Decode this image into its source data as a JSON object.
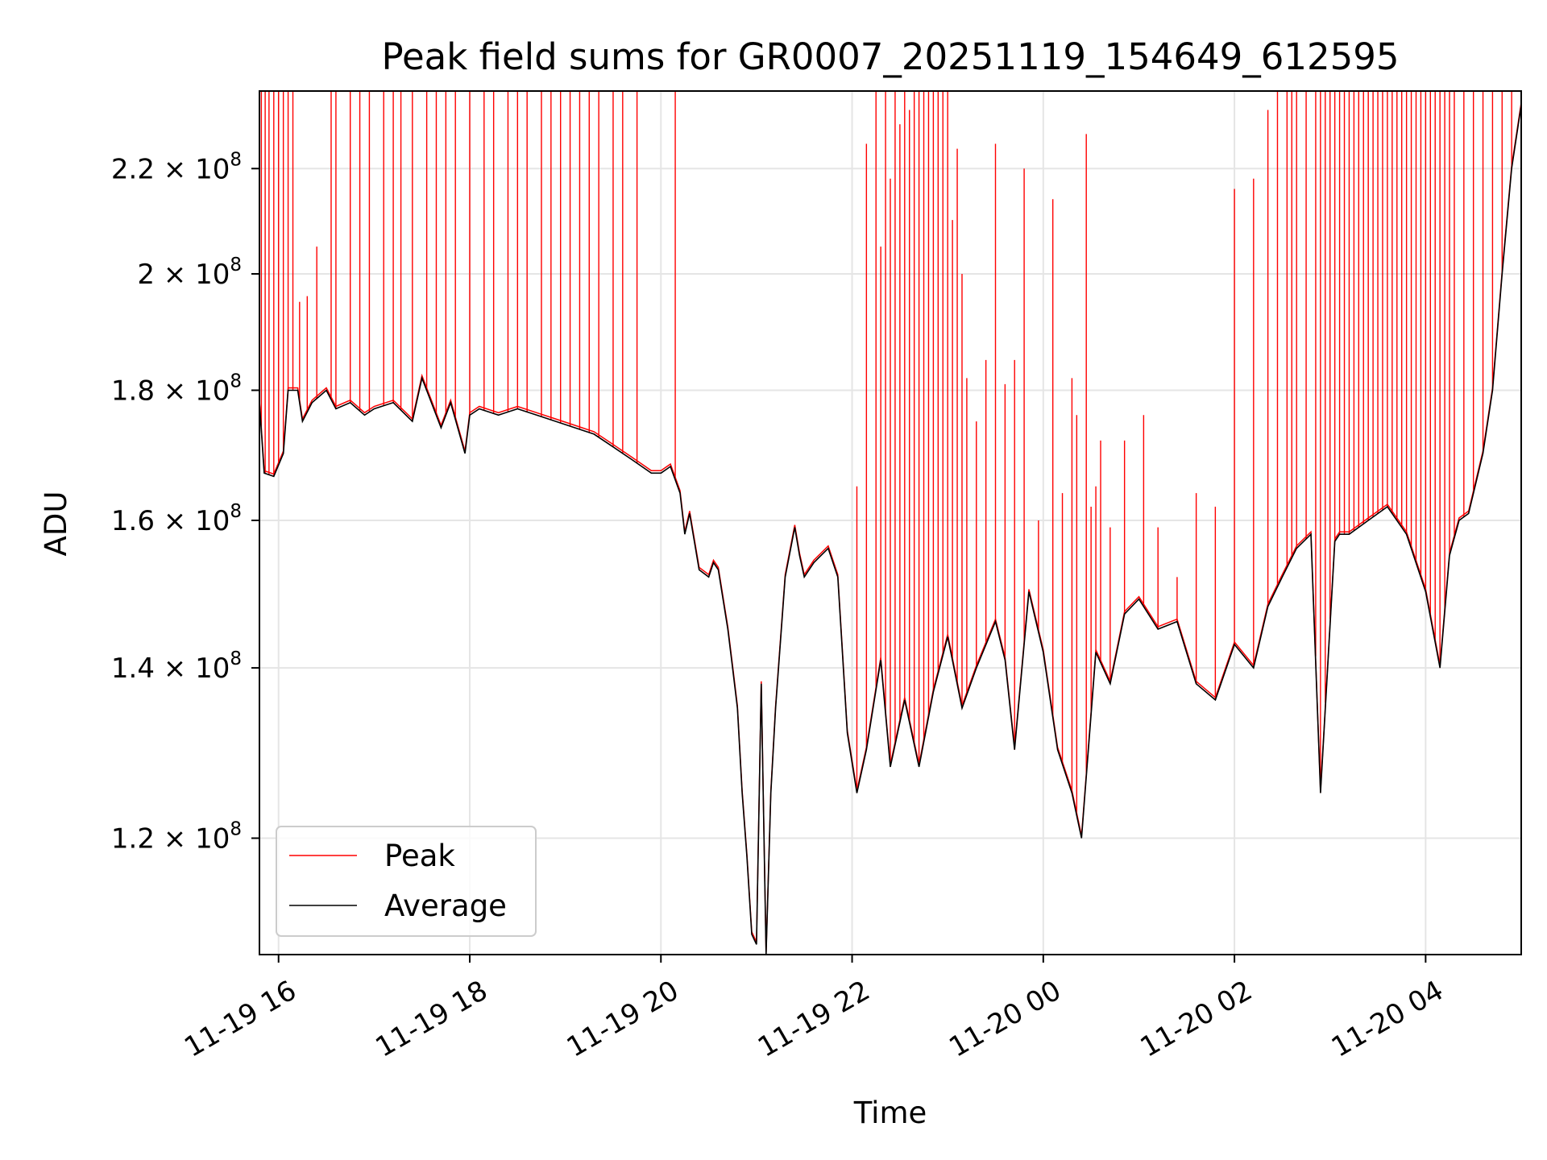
{
  "chart_data": {
    "type": "line",
    "title": "Peak field sums for GR0007_20251119_154649_612595",
    "xlabel": "Time",
    "ylabel": "ADU",
    "yscale": "log",
    "grid": true,
    "legend_position": "lower-left",
    "xlim_hours": [
      15.8,
      29.0
    ],
    "ylim": [
      108000000,
      236000000
    ],
    "x_ticks": [
      {
        "hour": 16,
        "label": "11-19 16"
      },
      {
        "hour": 18,
        "label": "11-19 18"
      },
      {
        "hour": 20,
        "label": "11-19 20"
      },
      {
        "hour": 22,
        "label": "11-19 22"
      },
      {
        "hour": 24,
        "label": "11-20 00"
      },
      {
        "hour": 26,
        "label": "11-20 02"
      },
      {
        "hour": 28,
        "label": "11-20 04"
      }
    ],
    "y_ticks": [
      {
        "value": 120000000,
        "mantissa": "1.2",
        "exponent": "8"
      },
      {
        "value": 140000000,
        "mantissa": "1.4",
        "exponent": "8"
      },
      {
        "value": 160000000,
        "mantissa": "1.6",
        "exponent": "8"
      },
      {
        "value": 180000000,
        "mantissa": "1.8",
        "exponent": "8"
      },
      {
        "value": 200000000,
        "mantissa": "2",
        "exponent": "8"
      },
      {
        "value": 220000000,
        "mantissa": "2.2",
        "exponent": "8"
      }
    ],
    "series": [
      {
        "name": "Average",
        "color": "#000000",
        "x_hours": [
          15.8,
          15.85,
          15.95,
          16.05,
          16.1,
          16.2,
          16.25,
          16.35,
          16.5,
          16.6,
          16.75,
          16.9,
          17.0,
          17.2,
          17.4,
          17.5,
          17.7,
          17.8,
          17.95,
          18.0,
          18.1,
          18.3,
          18.5,
          18.7,
          18.9,
          19.1,
          19.3,
          19.5,
          19.7,
          19.9,
          20.0,
          20.1,
          20.2,
          20.25,
          20.3,
          20.4,
          20.5,
          20.55,
          20.6,
          20.7,
          20.75,
          20.8,
          20.85,
          20.9,
          20.95,
          21.0,
          21.05,
          21.1,
          21.15,
          21.2,
          21.3,
          21.4,
          21.45,
          21.5,
          21.6,
          21.75,
          21.85,
          21.95,
          22.05,
          22.15,
          22.3,
          22.4,
          22.55,
          22.7,
          22.85,
          23.0,
          23.15,
          23.3,
          23.5,
          23.6,
          23.7,
          23.85,
          24.0,
          24.15,
          24.3,
          24.4,
          24.55,
          24.7,
          24.85,
          25.0,
          25.2,
          25.4,
          25.6,
          25.8,
          26.0,
          26.2,
          26.35,
          26.5,
          26.65,
          26.8,
          26.9,
          27.05,
          27.1,
          27.2,
          27.4,
          27.6,
          27.8,
          28.0,
          28.15,
          28.25,
          28.35,
          28.45,
          28.6,
          28.7,
          28.8,
          28.9,
          29.0
        ],
        "values": [
          178000000,
          167000000,
          166500000,
          170000000,
          180000000,
          180000000,
          175000000,
          178000000,
          180000000,
          177000000,
          178000000,
          176000000,
          177000000,
          178000000,
          175000000,
          182000000,
          174000000,
          178000000,
          170000000,
          176000000,
          177000000,
          176000000,
          177000000,
          176000000,
          175000000,
          174000000,
          173000000,
          171000000,
          169000000,
          167000000,
          167000000,
          168000000,
          164000000,
          158000000,
          161000000,
          153000000,
          152000000,
          154000000,
          153000000,
          145000000,
          140000000,
          135000000,
          125000000,
          118000000,
          110000000,
          109000000,
          138000000,
          108000000,
          125000000,
          135000000,
          152000000,
          159000000,
          155000000,
          152000000,
          154000000,
          156000000,
          152000000,
          132000000,
          125000000,
          130000000,
          141000000,
          128000000,
          136000000,
          128000000,
          137000000,
          144000000,
          135000000,
          140000000,
          146000000,
          141000000,
          130000000,
          150000000,
          142000000,
          130000000,
          125000000,
          120000000,
          142000000,
          138000000,
          147000000,
          149000000,
          145000000,
          146000000,
          138000000,
          136000000,
          143000000,
          140000000,
          148000000,
          152000000,
          156000000,
          158000000,
          125000000,
          157000000,
          158000000,
          158000000,
          160000000,
          162000000,
          158000000,
          150000000,
          140000000,
          155000000,
          160000000,
          161000000,
          170000000,
          180000000,
          200000000,
          220000000,
          233000000
        ]
      },
      {
        "name": "Peak",
        "color": "#ff0000",
        "spike_x_hours": [
          15.82,
          15.86,
          15.9,
          15.95,
          16.0,
          16.05,
          16.1,
          16.15,
          16.22,
          16.3,
          16.4,
          16.55,
          16.6,
          16.75,
          16.85,
          16.95,
          17.1,
          17.2,
          17.28,
          17.4,
          17.55,
          17.65,
          17.75,
          17.85,
          18.0,
          18.15,
          18.25,
          18.4,
          18.5,
          18.6,
          18.75,
          18.85,
          18.95,
          19.05,
          19.15,
          19.25,
          19.35,
          19.5,
          19.6,
          19.75,
          20.15,
          22.05,
          22.15,
          22.25,
          22.3,
          22.35,
          22.4,
          22.45,
          22.5,
          22.55,
          22.6,
          22.65,
          22.7,
          22.75,
          22.8,
          22.85,
          22.9,
          22.95,
          23.0,
          23.05,
          23.1,
          23.15,
          23.2,
          23.3,
          23.4,
          23.5,
          23.6,
          23.7,
          23.8,
          23.95,
          24.1,
          24.2,
          24.3,
          24.35,
          24.45,
          24.5,
          24.55,
          24.6,
          24.7,
          24.85,
          25.05,
          25.2,
          25.4,
          25.6,
          25.8,
          26.0,
          26.2,
          26.35,
          26.45,
          26.55,
          26.6,
          26.65,
          26.75,
          26.85,
          26.9,
          26.95,
          27.0,
          27.05,
          27.1,
          27.15,
          27.2,
          27.25,
          27.3,
          27.35,
          27.4,
          27.45,
          27.5,
          27.55,
          27.6,
          27.65,
          27.7,
          27.75,
          27.8,
          27.85,
          27.9,
          27.95,
          28.0,
          28.05,
          28.1,
          28.15,
          28.2,
          28.25,
          28.3,
          28.4,
          28.5,
          28.6,
          28.7,
          28.8,
          28.9
        ],
        "spike_values": [
          236000000,
          236000000,
          236000000,
          236000000,
          236000000,
          236000000,
          236000000,
          236000000,
          195000000,
          196000000,
          205000000,
          236000000,
          236000000,
          236000000,
          236000000,
          236000000,
          236000000,
          236000000,
          236000000,
          236000000,
          236000000,
          236000000,
          236000000,
          236000000,
          236000000,
          236000000,
          236000000,
          236000000,
          236000000,
          236000000,
          236000000,
          236000000,
          236000000,
          236000000,
          236000000,
          236000000,
          236000000,
          236000000,
          236000000,
          236000000,
          236000000,
          165000000,
          225000000,
          236000000,
          205000000,
          236000000,
          218000000,
          236000000,
          229000000,
          236000000,
          232000000,
          236000000,
          236000000,
          236000000,
          236000000,
          236000000,
          236000000,
          236000000,
          236000000,
          210000000,
          224000000,
          200000000,
          182000000,
          175000000,
          185000000,
          225000000,
          181000000,
          185000000,
          220000000,
          160000000,
          214000000,
          164000000,
          182000000,
          176000000,
          227000000,
          162000000,
          165000000,
          172000000,
          159000000,
          172000000,
          176000000,
          159000000,
          152000000,
          164000000,
          162000000,
          216000000,
          218000000,
          232000000,
          236000000,
          236000000,
          236000000,
          236000000,
          236000000,
          236000000,
          236000000,
          236000000,
          236000000,
          236000000,
          236000000,
          236000000,
          236000000,
          236000000,
          236000000,
          236000000,
          236000000,
          236000000,
          236000000,
          236000000,
          236000000,
          236000000,
          236000000,
          236000000,
          236000000,
          236000000,
          236000000,
          236000000,
          236000000,
          236000000,
          236000000,
          236000000,
          236000000,
          236000000,
          236000000,
          236000000,
          236000000,
          236000000,
          236000000,
          236000000,
          236000000
        ]
      }
    ]
  }
}
